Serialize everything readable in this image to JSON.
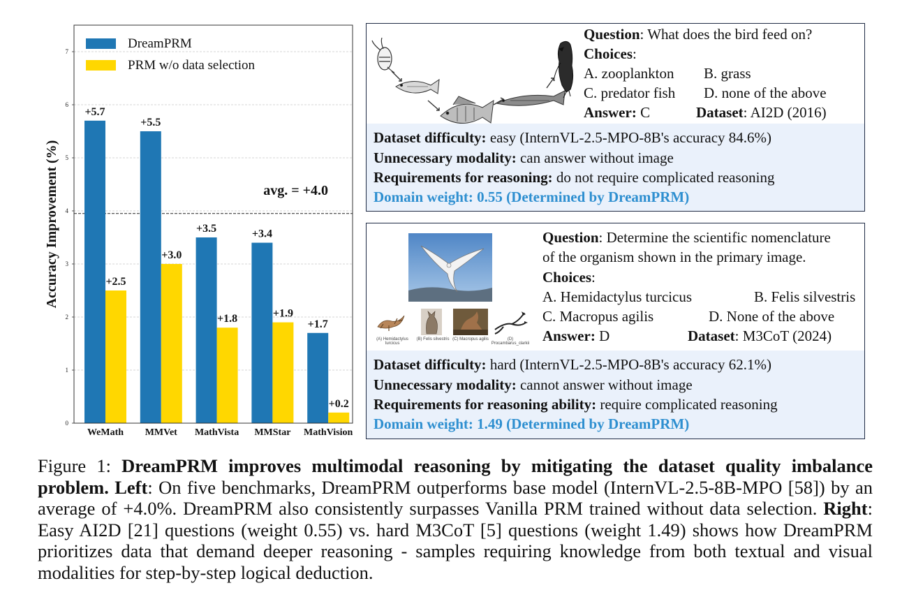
{
  "chart_data": {
    "type": "bar",
    "categories": [
      "WeMath",
      "MMVet",
      "MathVista",
      "MMStar",
      "MathVision"
    ],
    "series": [
      {
        "name": "DreamPRM",
        "values": [
          5.7,
          5.5,
          3.5,
          3.4,
          1.7
        ],
        "labels": [
          "+5.7",
          "+5.5",
          "+3.5",
          "+3.4",
          "+1.7"
        ],
        "color": "#1f77b4"
      },
      {
        "name": "PRM w/o data selection",
        "values": [
          2.5,
          3.0,
          1.8,
          1.9,
          0.2
        ],
        "labels": [
          "+2.5",
          "+3.0",
          "+1.8",
          "+1.9",
          "+0.2"
        ],
        "color": "#ffd700"
      }
    ],
    "ylabel": "Accuracy Improvement (%)",
    "ylim": [
      0,
      7.5
    ],
    "yticks": [
      0,
      1,
      2,
      3,
      4,
      5,
      6,
      7
    ],
    "grid": true,
    "legend": "top-left",
    "reference_line": {
      "value": 3.95,
      "label": "avg. = +4.0"
    }
  },
  "example_top": {
    "question_label": "Question",
    "question_text": ": What does the bird feed on?",
    "choices_label": "Choices",
    "choices_colon": ":",
    "choice_a": "A. zooplankton",
    "choice_b": "B. grass",
    "choice_c": "C. predator fish",
    "choice_d": "D. none of the above",
    "answer_label": "Answer:",
    "answer_value": " C",
    "dataset_label": "Dataset",
    "dataset_value": ":  AI2D (2016)",
    "difficulty_label": "Dataset difficulty:",
    "difficulty_value": " easy (InternVL-2.5-MPO-8B's accuracy 84.6%)",
    "modality_label": "Unnecessary modality:",
    "modality_value": " can answer without image",
    "reasoning_label": "Requirements for reasoning:",
    "reasoning_value": " do not require complicated reasoning",
    "weight_label": "Domain weight",
    "weight_value": ": 0.55  (Determined by DreamPRM)"
  },
  "example_bottom": {
    "question_label": "Question",
    "question_text_1": ": Determine the scientific nomenclature",
    "question_text_2": "of the organism shown in the primary image.",
    "choices_label": "Choices",
    "choices_colon": ":",
    "choice_a": "A. Hemidactylus turcicus",
    "choice_b": "B. Felis silvestris",
    "choice_c": "C. Macropus agilis",
    "choice_d": "D. None of the above",
    "answer_label": "Answer:",
    "answer_value": " D",
    "dataset_label": "Dataset",
    "dataset_value": ":  M3CoT (2024)",
    "thumb_captions": [
      "(A) Hemidactylus turcicus",
      "(B) Felis silvestris",
      "(C) Macropus agilis",
      "(D) Procambarus_clarkii"
    ],
    "difficulty_label": "Dataset difficulty:",
    "difficulty_value": " hard (InternVL-2.5-MPO-8B's accuracy 62.1%)",
    "modality_label": "Unnecessary modality:",
    "modality_value": " cannot answer without image",
    "reasoning_label": "Requirements for reasoning ability:",
    "reasoning_value": " require complicated reasoning",
    "weight_label": "Domain weight",
    "weight_value": ": 1.49  (Determined by DreamPRM)"
  },
  "caption": {
    "prefix": "Figure 1: ",
    "bold_title": "DreamPRM improves multimodal reasoning by mitigating the dataset quality imbalance problem.",
    "left_label": "Left",
    "left_text": ": On five benchmarks, DreamPRM outperforms base model (InternVL-2.5-8B-MPO [58]) by an average of +4.0%. DreamPRM also consistently surpasses Vanilla PRM trained without data selection. ",
    "right_label": "Right",
    "right_text": ": Easy AI2D [21] questions (weight 0.55) vs. hard M3CoT [5] questions (weight 1.49) shows how DreamPRM prioritizes data that demand deeper reasoning - samples requiring knowledge from both textual and visual modalities for step-by-step logical deduction."
  }
}
